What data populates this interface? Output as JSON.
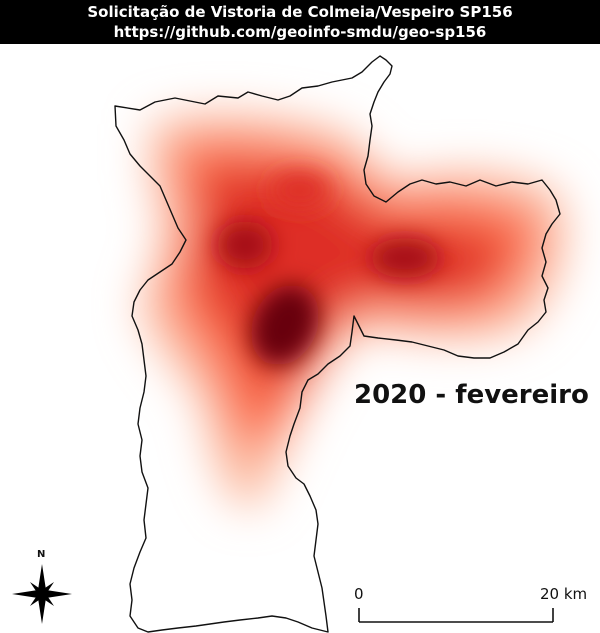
{
  "header": {
    "title_line1": "Solicitação de Vistoria de Colmeia/Vespeiro SP156",
    "title_line2": "https://github.com/geoinfo-smdu/geo-sp156"
  },
  "map": {
    "period_label": "2020 - fevereiro",
    "heatmap_colors": [
      "#fff5f0",
      "#fcbba1",
      "#fb6a4a",
      "#de2d26",
      "#a50f15",
      "#67000d"
    ]
  },
  "scale_bar": {
    "start_label": "0",
    "end_label": "20 km"
  },
  "north_arrow": {
    "label": "N",
    "icon": "compass-rose-icon"
  }
}
